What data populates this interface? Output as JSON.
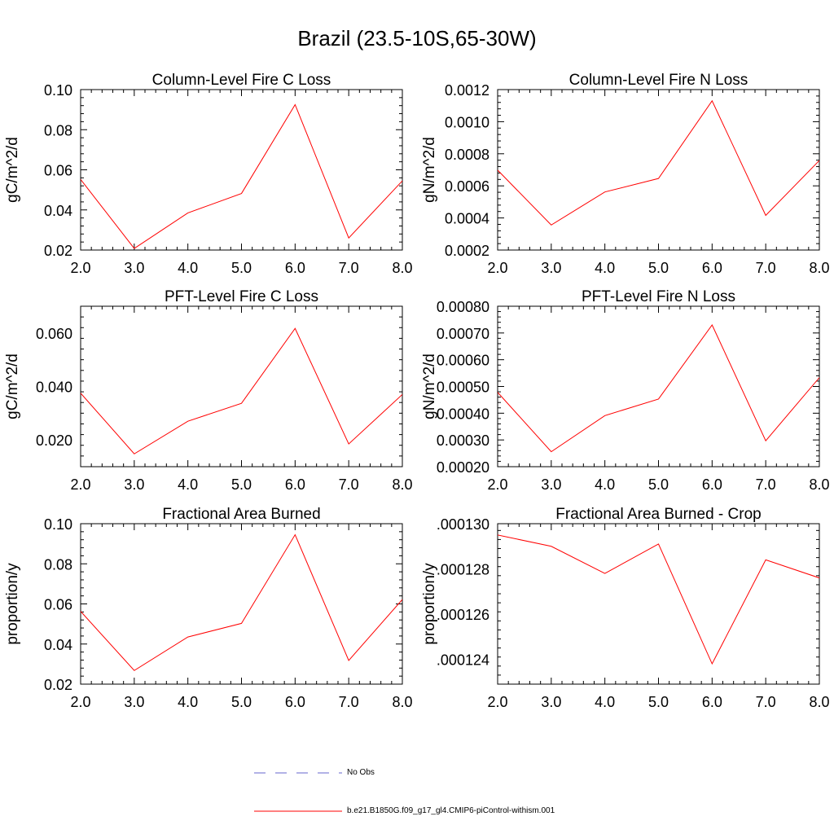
{
  "title": "Brazil (23.5-10S,65-30W)",
  "legend": {
    "entries": [
      {
        "label": "No Obs",
        "color": "#6666cc",
        "style": "dashed"
      },
      {
        "label": "b.e21.B1850G.f09_g17_gl4.CMIP6-piControl-withism.001",
        "color": "#ff0000",
        "style": "solid"
      }
    ]
  },
  "chart_data": [
    {
      "type": "line",
      "title": "Column-Level Fire C Loss",
      "ylabel": "gC/m^2/d",
      "xlabel": "",
      "x": [
        2.0,
        3.0,
        4.0,
        5.0,
        6.0,
        7.0,
        8.0
      ],
      "xlim": [
        2.0,
        8.0
      ],
      "xticks": [
        "2.0",
        "3.0",
        "4.0",
        "5.0",
        "6.0",
        "7.0",
        "8.0"
      ],
      "ylim": [
        0.02,
        0.1
      ],
      "yticks": [
        0.02,
        0.04,
        0.06,
        0.08,
        0.1
      ],
      "ytick_labels": [
        "0.02",
        "0.04",
        "0.06",
        "0.08",
        "0.10"
      ],
      "series": [
        {
          "name": "b.e21.B1850G.f09_g17_gl4.CMIP6-piControl-withism.001",
          "color": "#ff0000",
          "values": [
            0.0552,
            0.0208,
            0.0385,
            0.0482,
            0.0925,
            0.026,
            0.0545
          ]
        }
      ]
    },
    {
      "type": "line",
      "title": "Column-Level Fire N Loss",
      "ylabel": "gN/m^2/d",
      "xlabel": "",
      "x": [
        2.0,
        3.0,
        4.0,
        5.0,
        6.0,
        7.0,
        8.0
      ],
      "xlim": [
        2.0,
        8.0
      ],
      "xticks": [
        "2.0",
        "3.0",
        "4.0",
        "5.0",
        "6.0",
        "7.0",
        "8.0"
      ],
      "ylim": [
        0.0002,
        0.0012
      ],
      "yticks": [
        0.0002,
        0.0004,
        0.0006,
        0.0008,
        0.001,
        0.0012
      ],
      "ytick_labels": [
        "0.0002",
        "0.0004",
        "0.0006",
        "0.0008",
        "0.0010",
        "0.0012"
      ],
      "series": [
        {
          "name": "b.e21.B1850G.f09_g17_gl4.CMIP6-piControl-withism.001",
          "color": "#ff0000",
          "values": [
            0.000698,
            0.000356,
            0.000562,
            0.000646,
            0.00113,
            0.000416,
            0.000758
          ]
        }
      ]
    },
    {
      "type": "line",
      "title": "PFT-Level Fire C Loss",
      "ylabel": "gC/m^2/d",
      "xlabel": "",
      "x": [
        2.0,
        3.0,
        4.0,
        5.0,
        6.0,
        7.0,
        8.0
      ],
      "xlim": [
        2.0,
        8.0
      ],
      "xticks": [
        "2.0",
        "3.0",
        "4.0",
        "5.0",
        "6.0",
        "7.0",
        "8.0"
      ],
      "ylim": [
        0.01,
        0.07
      ],
      "yticks": [
        0.02,
        0.04,
        0.06
      ],
      "ytick_labels": [
        "0.020",
        "0.040",
        "0.060"
      ],
      "series": [
        {
          "name": "b.e21.B1850G.f09_g17_gl4.CMIP6-piControl-withism.001",
          "color": "#ff0000",
          "values": [
            0.0375,
            0.0148,
            0.027,
            0.0337,
            0.0617,
            0.0185,
            0.037
          ]
        }
      ]
    },
    {
      "type": "line",
      "title": "PFT-Level Fire N Loss",
      "ylabel": "gN/m^2/d",
      "xlabel": "",
      "x": [
        2.0,
        3.0,
        4.0,
        5.0,
        6.0,
        7.0,
        8.0
      ],
      "xlim": [
        2.0,
        8.0
      ],
      "xticks": [
        "2.0",
        "3.0",
        "4.0",
        "5.0",
        "6.0",
        "7.0",
        "8.0"
      ],
      "ylim": [
        0.0002,
        0.0008
      ],
      "yticks": [
        0.0002,
        0.0003,
        0.0004,
        0.0005,
        0.0006,
        0.0007,
        0.0008
      ],
      "ytick_labels": [
        "0.00020",
        "0.00030",
        "0.00040",
        "0.00050",
        "0.00060",
        "0.00070",
        "0.00080"
      ],
      "series": [
        {
          "name": "b.e21.B1850G.f09_g17_gl4.CMIP6-piControl-withism.001",
          "color": "#ff0000",
          "values": [
            0.000478,
            0.000256,
            0.000391,
            0.000453,
            0.00073,
            0.000297,
            0.000533
          ]
        }
      ]
    },
    {
      "type": "line",
      "title": "Fractional Area Burned",
      "ylabel": "proportion/y",
      "xlabel": "",
      "x": [
        2.0,
        3.0,
        4.0,
        5.0,
        6.0,
        7.0,
        8.0
      ],
      "xlim": [
        2.0,
        8.0
      ],
      "xticks": [
        "2.0",
        "3.0",
        "4.0",
        "5.0",
        "6.0",
        "7.0",
        "8.0"
      ],
      "ylim": [
        0.02,
        0.1
      ],
      "yticks": [
        0.02,
        0.04,
        0.06,
        0.08,
        0.1
      ],
      "ytick_labels": [
        "0.02",
        "0.04",
        "0.06",
        "0.08",
        "0.10"
      ],
      "series": [
        {
          "name": "b.e21.B1850G.f09_g17_gl4.CMIP6-piControl-withism.001",
          "color": "#ff0000",
          "values": [
            0.0563,
            0.0268,
            0.0435,
            0.0503,
            0.0945,
            0.0318,
            0.0622
          ]
        }
      ]
    },
    {
      "type": "line",
      "title": "Fractional Area Burned - Crop",
      "ylabel": "proportion/y",
      "xlabel": "",
      "x": [
        2.0,
        3.0,
        4.0,
        5.0,
        6.0,
        7.0,
        8.0
      ],
      "xlim": [
        2.0,
        8.0
      ],
      "xticks": [
        "2.0",
        "3.0",
        "4.0",
        "5.0",
        "6.0",
        "7.0",
        "8.0"
      ],
      "ylim": [
        0.0001229,
        0.00013
      ],
      "yticks": [
        0.000124,
        0.000126,
        0.000128,
        0.00013
      ],
      "ytick_labels": [
        ".000124",
        ".000126",
        ".000128",
        ".000130"
      ],
      "series": [
        {
          "name": "b.e21.B1850G.f09_g17_gl4.CMIP6-piControl-withism.001",
          "color": "#ff0000",
          "values": [
            0.0001295,
            0.000129,
            0.0001278,
            0.0001291,
            0.0001238,
            0.0001284,
            0.0001276
          ]
        }
      ]
    }
  ]
}
